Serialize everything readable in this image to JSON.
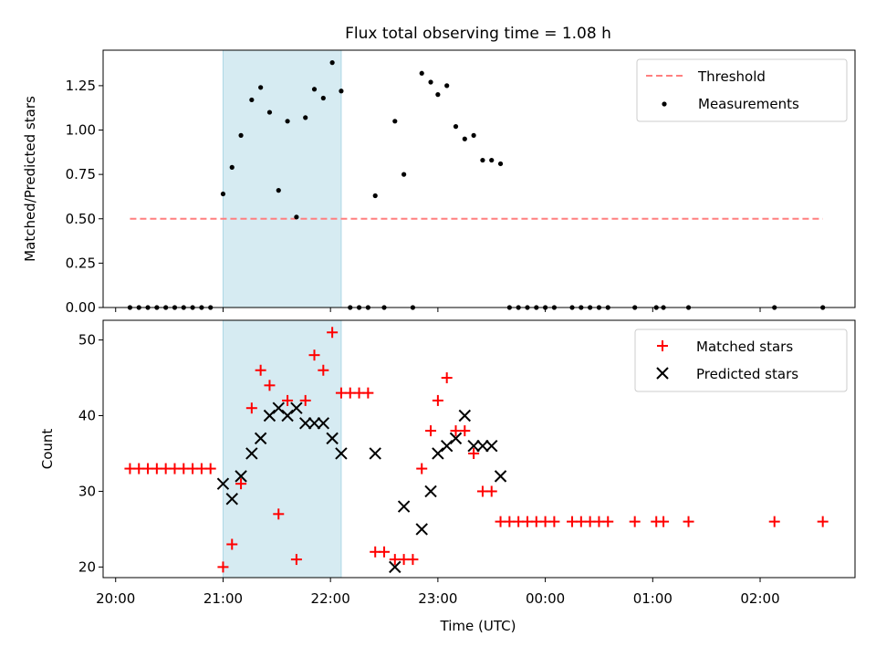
{
  "figure": {
    "title": "Flux total observing time = 1.08 h",
    "colors": {
      "threshold": "#ff7f7f",
      "measurement": "#000000",
      "matched": "#ff0000",
      "predicted": "#000000",
      "span": "#add8e6"
    }
  },
  "chart_data": [
    {
      "type": "scatter",
      "panel": "top",
      "xlabel": "",
      "ylabel": "Matched/Predicted stars",
      "xlim": [
        "19:53",
        "02:53"
      ],
      "ylim": [
        0,
        1.45
      ],
      "yticks": [
        0.0,
        0.25,
        0.5,
        0.75,
        1.0,
        1.25
      ],
      "ytick_labels": [
        "0.00",
        "0.25",
        "0.50",
        "0.75",
        "1.00",
        "1.25"
      ],
      "xticks": [
        "20:00",
        "21:00",
        "22:00",
        "23:00",
        "00:00",
        "01:00",
        "02:00"
      ],
      "highlight_span": [
        "21:00",
        "22:06"
      ],
      "legend": {
        "placement": "upper right",
        "entries": [
          "Threshold",
          "Measurements"
        ]
      },
      "threshold": {
        "name": "Threshold",
        "y": 0.5,
        "x": [
          "20:08",
          "02:35"
        ],
        "style": "dashed"
      },
      "series": [
        {
          "name": "Measurements",
          "points": [
            [
              "20:08",
              0
            ],
            [
              "20:13",
              0
            ],
            [
              "20:18",
              0
            ],
            [
              "20:23",
              0
            ],
            [
              "20:28",
              0
            ],
            [
              "20:33",
              0
            ],
            [
              "20:38",
              0
            ],
            [
              "20:43",
              0
            ],
            [
              "20:48",
              0
            ],
            [
              "20:53",
              0
            ],
            [
              "21:00",
              0.64
            ],
            [
              "21:05",
              0.79
            ],
            [
              "21:10",
              0.97
            ],
            [
              "21:16",
              1.17
            ],
            [
              "21:21",
              1.24
            ],
            [
              "21:26",
              1.1
            ],
            [
              "21:31",
              0.66
            ],
            [
              "21:36",
              1.05
            ],
            [
              "21:41",
              0.51
            ],
            [
              "21:46",
              1.07
            ],
            [
              "21:51",
              1.23
            ],
            [
              "21:56",
              1.18
            ],
            [
              "22:01",
              1.38
            ],
            [
              "22:06",
              1.22
            ],
            [
              "22:11",
              0
            ],
            [
              "22:16",
              0
            ],
            [
              "22:21",
              0
            ],
            [
              "22:25",
              0.63
            ],
            [
              "22:30",
              0
            ],
            [
              "22:36",
              1.05
            ],
            [
              "22:41",
              0.75
            ],
            [
              "22:46",
              0
            ],
            [
              "22:51",
              1.32
            ],
            [
              "22:56",
              1.27
            ],
            [
              "23:00",
              1.2
            ],
            [
              "23:05",
              1.25
            ],
            [
              "23:10",
              1.02
            ],
            [
              "23:15",
              0.95
            ],
            [
              "23:20",
              0.97
            ],
            [
              "23:25",
              0.83
            ],
            [
              "23:30",
              0.83
            ],
            [
              "23:35",
              0.81
            ],
            [
              "23:40",
              0
            ],
            [
              "23:45",
              0
            ],
            [
              "23:50",
              0
            ],
            [
              "23:55",
              0
            ],
            [
              "00:00",
              0
            ],
            [
              "00:05",
              0
            ],
            [
              "00:15",
              0
            ],
            [
              "00:20",
              0
            ],
            [
              "00:25",
              0
            ],
            [
              "00:30",
              0
            ],
            [
              "00:35",
              0
            ],
            [
              "00:50",
              0
            ],
            [
              "01:02",
              0
            ],
            [
              "01:06",
              0
            ],
            [
              "01:20",
              0
            ],
            [
              "02:08",
              0
            ],
            [
              "02:35",
              0
            ]
          ]
        }
      ]
    },
    {
      "type": "scatter",
      "panel": "bottom",
      "xlabel": "Time (UTC)",
      "ylabel": "Count",
      "xlim": [
        "19:53",
        "02:53"
      ],
      "ylim": [
        18.6,
        52.6
      ],
      "yticks": [
        20,
        30,
        40,
        50
      ],
      "ytick_labels": [
        "20",
        "30",
        "40",
        "50"
      ],
      "xticks": [
        "20:00",
        "21:00",
        "22:00",
        "23:00",
        "00:00",
        "01:00",
        "02:00"
      ],
      "highlight_span": [
        "21:00",
        "22:06"
      ],
      "legend": {
        "placement": "upper right",
        "entries": [
          "Matched stars",
          "Predicted stars"
        ]
      },
      "series": [
        {
          "name": "Matched stars",
          "marker": "plus",
          "points": [
            [
              "20:08",
              33
            ],
            [
              "20:13",
              33
            ],
            [
              "20:18",
              33
            ],
            [
              "20:23",
              33
            ],
            [
              "20:28",
              33
            ],
            [
              "20:33",
              33
            ],
            [
              "20:38",
              33
            ],
            [
              "20:43",
              33
            ],
            [
              "20:48",
              33
            ],
            [
              "20:53",
              33
            ],
            [
              "21:00",
              20
            ],
            [
              "21:05",
              23
            ],
            [
              "21:10",
              31
            ],
            [
              "21:16",
              41
            ],
            [
              "21:21",
              46
            ],
            [
              "21:26",
              44
            ],
            [
              "21:31",
              27
            ],
            [
              "21:36",
              42
            ],
            [
              "21:41",
              21
            ],
            [
              "21:46",
              42
            ],
            [
              "21:51",
              48
            ],
            [
              "21:56",
              46
            ],
            [
              "22:01",
              51
            ],
            [
              "22:06",
              43
            ],
            [
              "22:11",
              43
            ],
            [
              "22:16",
              43
            ],
            [
              "22:21",
              43
            ],
            [
              "22:25",
              22
            ],
            [
              "22:30",
              22
            ],
            [
              "22:36",
              21
            ],
            [
              "22:41",
              21
            ],
            [
              "22:46",
              21
            ],
            [
              "22:51",
              33
            ],
            [
              "22:56",
              38
            ],
            [
              "23:00",
              42
            ],
            [
              "23:05",
              45
            ],
            [
              "23:10",
              38
            ],
            [
              "23:15",
              38
            ],
            [
              "23:20",
              35
            ],
            [
              "23:25",
              30
            ],
            [
              "23:30",
              30
            ],
            [
              "23:35",
              26
            ],
            [
              "23:40",
              26
            ],
            [
              "23:45",
              26
            ],
            [
              "23:50",
              26
            ],
            [
              "23:55",
              26
            ],
            [
              "00:00",
              26
            ],
            [
              "00:05",
              26
            ],
            [
              "00:15",
              26
            ],
            [
              "00:20",
              26
            ],
            [
              "00:25",
              26
            ],
            [
              "00:30",
              26
            ],
            [
              "00:35",
              26
            ],
            [
              "00:50",
              26
            ],
            [
              "01:02",
              26
            ],
            [
              "01:06",
              26
            ],
            [
              "01:20",
              26
            ],
            [
              "02:08",
              26
            ],
            [
              "02:35",
              26
            ]
          ]
        },
        {
          "name": "Predicted stars",
          "marker": "x",
          "points": [
            [
              "21:00",
              31
            ],
            [
              "21:05",
              29
            ],
            [
              "21:10",
              32
            ],
            [
              "21:16",
              35
            ],
            [
              "21:21",
              37
            ],
            [
              "21:26",
              40
            ],
            [
              "21:31",
              41
            ],
            [
              "21:36",
              40
            ],
            [
              "21:41",
              41
            ],
            [
              "21:46",
              39
            ],
            [
              "21:51",
              39
            ],
            [
              "21:56",
              39
            ],
            [
              "22:01",
              37
            ],
            [
              "22:06",
              35
            ],
            [
              "22:25",
              35
            ],
            [
              "22:36",
              20
            ],
            [
              "22:41",
              28
            ],
            [
              "22:51",
              25
            ],
            [
              "22:56",
              30
            ],
            [
              "23:00",
              35
            ],
            [
              "23:05",
              36
            ],
            [
              "23:10",
              37
            ],
            [
              "23:15",
              40
            ],
            [
              "23:20",
              36
            ],
            [
              "23:25",
              36
            ],
            [
              "23:30",
              36
            ],
            [
              "23:35",
              32
            ]
          ]
        }
      ]
    }
  ]
}
